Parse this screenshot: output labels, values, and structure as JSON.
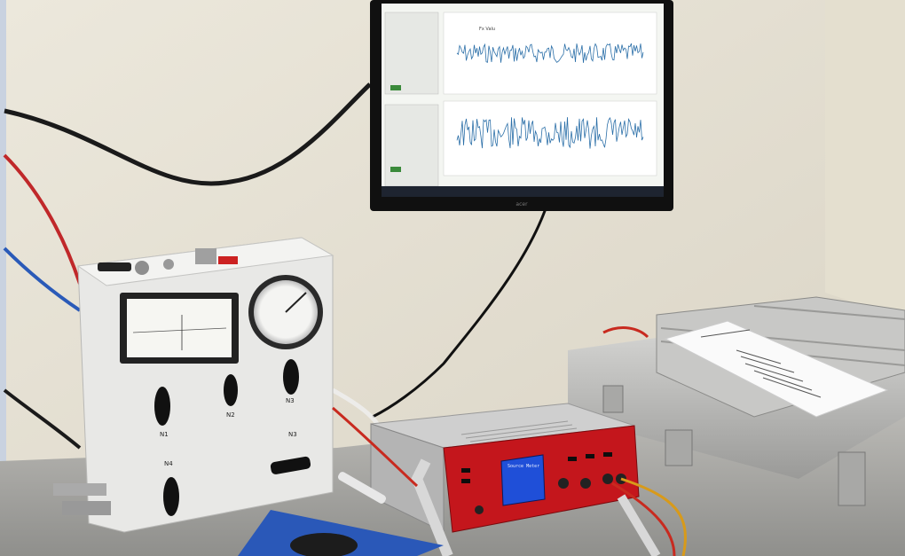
{
  "photo": {
    "subject": "",
    "monitor": {
      "brand": "acer",
      "plots": [
        {
          "title": "Fx Valu"
        },
        {
          "title": ""
        }
      ]
    },
    "gas_panel": {
      "valve_labels": [
        "N1",
        "N2",
        "N3",
        "N3",
        "N4"
      ]
    },
    "controller": {
      "screen_title": "Source Meter"
    }
  }
}
